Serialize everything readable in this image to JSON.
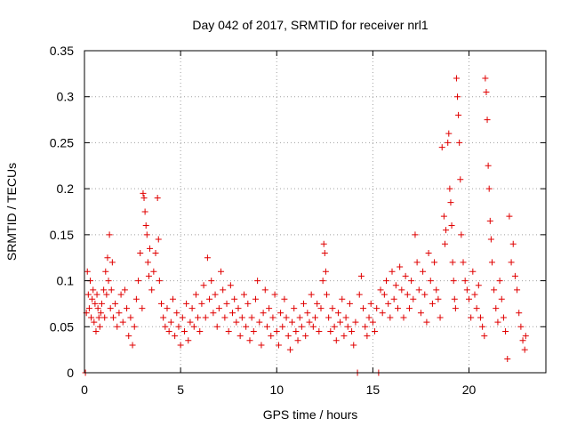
{
  "chart_data": {
    "type": "scatter",
    "title": "Day 042 of 2017, SRMTID for receiver nrl1",
    "xlabel": "GPS time / hours",
    "ylabel": "SRMTID / TECUs",
    "xlim": [
      0,
      24
    ],
    "ylim": [
      0,
      0.35
    ],
    "xticks": [
      "0",
      "5",
      "10",
      "15",
      "20"
    ],
    "yticks": [
      "0",
      "0.05",
      "0.1",
      "0.15",
      "0.2",
      "0.25",
      "0.3",
      "0.35"
    ],
    "grid": true,
    "marker": "+",
    "color": "#e00000",
    "series": [
      {
        "points": [
          [
            0.05,
            0.0
          ],
          [
            0.1,
            0.065
          ],
          [
            0.15,
            0.11
          ],
          [
            0.2,
            0.085
          ],
          [
            0.25,
            0.07
          ],
          [
            0.3,
            0.1
          ],
          [
            0.35,
            0.06
          ],
          [
            0.4,
            0.08
          ],
          [
            0.45,
            0.09
          ],
          [
            0.5,
            0.055
          ],
          [
            0.55,
            0.075
          ],
          [
            0.6,
            0.045
          ],
          [
            0.65,
            0.085
          ],
          [
            0.7,
            0.07
          ],
          [
            0.75,
            0.06
          ],
          [
            0.8,
            0.05
          ],
          [
            0.85,
            0.065
          ],
          [
            0.9,
            0.075
          ],
          [
            1.0,
            0.09
          ],
          [
            1.05,
            0.06
          ],
          [
            1.1,
            0.11
          ],
          [
            1.15,
            0.085
          ],
          [
            1.2,
            0.125
          ],
          [
            1.25,
            0.1
          ],
          [
            1.3,
            0.15
          ],
          [
            1.35,
            0.07
          ],
          [
            1.4,
            0.09
          ],
          [
            1.45,
            0.12
          ],
          [
            1.5,
            0.06
          ],
          [
            1.6,
            0.075
          ],
          [
            1.7,
            0.05
          ],
          [
            1.8,
            0.065
          ],
          [
            1.9,
            0.085
          ],
          [
            2.0,
            0.055
          ],
          [
            2.1,
            0.09
          ],
          [
            2.2,
            0.07
          ],
          [
            2.3,
            0.04
          ],
          [
            2.4,
            0.06
          ],
          [
            2.5,
            0.03
          ],
          [
            2.6,
            0.05
          ],
          [
            2.7,
            0.08
          ],
          [
            2.8,
            0.1
          ],
          [
            2.9,
            0.13
          ],
          [
            3.0,
            0.07
          ],
          [
            3.05,
            0.195
          ],
          [
            3.1,
            0.19
          ],
          [
            3.15,
            0.175
          ],
          [
            3.2,
            0.16
          ],
          [
            3.25,
            0.15
          ],
          [
            3.3,
            0.12
          ],
          [
            3.35,
            0.105
          ],
          [
            3.4,
            0.135
          ],
          [
            3.5,
            0.09
          ],
          [
            3.6,
            0.11
          ],
          [
            3.7,
            0.13
          ],
          [
            3.8,
            0.19
          ],
          [
            3.85,
            0.145
          ],
          [
            3.9,
            0.1
          ],
          [
            4.0,
            0.075
          ],
          [
            4.1,
            0.06
          ],
          [
            4.2,
            0.05
          ],
          [
            4.3,
            0.07
          ],
          [
            4.4,
            0.045
          ],
          [
            4.5,
            0.055
          ],
          [
            4.6,
            0.08
          ],
          [
            4.7,
            0.04
          ],
          [
            4.8,
            0.065
          ],
          [
            4.9,
            0.05
          ],
          [
            5.0,
            0.03
          ],
          [
            5.1,
            0.06
          ],
          [
            5.2,
            0.045
          ],
          [
            5.3,
            0.075
          ],
          [
            5.4,
            0.035
          ],
          [
            5.5,
            0.055
          ],
          [
            5.6,
            0.07
          ],
          [
            5.7,
            0.05
          ],
          [
            5.8,
            0.085
          ],
          [
            5.9,
            0.06
          ],
          [
            6.0,
            0.045
          ],
          [
            6.1,
            0.075
          ],
          [
            6.2,
            0.095
          ],
          [
            6.3,
            0.06
          ],
          [
            6.4,
            0.125
          ],
          [
            6.5,
            0.08
          ],
          [
            6.6,
            0.1
          ],
          [
            6.7,
            0.065
          ],
          [
            6.8,
            0.085
          ],
          [
            6.9,
            0.05
          ],
          [
            7.0,
            0.07
          ],
          [
            7.1,
            0.11
          ],
          [
            7.2,
            0.09
          ],
          [
            7.3,
            0.06
          ],
          [
            7.4,
            0.075
          ],
          [
            7.5,
            0.045
          ],
          [
            7.6,
            0.095
          ],
          [
            7.7,
            0.065
          ],
          [
            7.8,
            0.08
          ],
          [
            7.9,
            0.055
          ],
          [
            8.0,
            0.07
          ],
          [
            8.1,
            0.04
          ],
          [
            8.2,
            0.06
          ],
          [
            8.3,
            0.085
          ],
          [
            8.4,
            0.05
          ],
          [
            8.5,
            0.075
          ],
          [
            8.6,
            0.035
          ],
          [
            8.7,
            0.06
          ],
          [
            8.8,
            0.045
          ],
          [
            8.9,
            0.08
          ],
          [
            9.0,
            0.1
          ],
          [
            9.1,
            0.055
          ],
          [
            9.2,
            0.03
          ],
          [
            9.3,
            0.065
          ],
          [
            9.4,
            0.09
          ],
          [
            9.5,
            0.05
          ],
          [
            9.6,
            0.07
          ],
          [
            9.7,
            0.04
          ],
          [
            9.8,
            0.06
          ],
          [
            9.9,
            0.085
          ],
          [
            10.0,
            0.045
          ],
          [
            10.1,
            0.03
          ],
          [
            10.2,
            0.065
          ],
          [
            10.3,
            0.05
          ],
          [
            10.4,
            0.08
          ],
          [
            10.5,
            0.06
          ],
          [
            10.6,
            0.04
          ],
          [
            10.7,
            0.025
          ],
          [
            10.8,
            0.055
          ],
          [
            10.9,
            0.07
          ],
          [
            11.0,
            0.045
          ],
          [
            11.1,
            0.035
          ],
          [
            11.2,
            0.06
          ],
          [
            11.3,
            0.05
          ],
          [
            11.4,
            0.075
          ],
          [
            11.5,
            0.04
          ],
          [
            11.6,
            0.065
          ],
          [
            11.7,
            0.055
          ],
          [
            11.8,
            0.085
          ],
          [
            11.9,
            0.05
          ],
          [
            12.0,
            0.06
          ],
          [
            12.1,
            0.075
          ],
          [
            12.2,
            0.045
          ],
          [
            12.3,
            0.07
          ],
          [
            12.4,
            0.1
          ],
          [
            12.45,
            0.14
          ],
          [
            12.5,
            0.13
          ],
          [
            12.55,
            0.11
          ],
          [
            12.6,
            0.085
          ],
          [
            12.7,
            0.06
          ],
          [
            12.8,
            0.045
          ],
          [
            12.9,
            0.07
          ],
          [
            13.0,
            0.05
          ],
          [
            13.1,
            0.035
          ],
          [
            13.2,
            0.065
          ],
          [
            13.3,
            0.055
          ],
          [
            13.4,
            0.08
          ],
          [
            13.5,
            0.04
          ],
          [
            13.6,
            0.06
          ],
          [
            13.7,
            0.05
          ],
          [
            13.8,
            0.075
          ],
          [
            13.9,
            0.045
          ],
          [
            14.0,
            0.03
          ],
          [
            14.1,
            0.055
          ],
          [
            14.2,
            0.0
          ],
          [
            14.3,
            0.085
          ],
          [
            14.4,
            0.105
          ],
          [
            14.5,
            0.07
          ],
          [
            14.6,
            0.05
          ],
          [
            14.7,
            0.04
          ],
          [
            14.8,
            0.06
          ],
          [
            14.9,
            0.075
          ],
          [
            15.0,
            0.055
          ],
          [
            15.1,
            0.045
          ],
          [
            15.2,
            0.07
          ],
          [
            15.3,
            0.0
          ],
          [
            15.4,
            0.09
          ],
          [
            15.5,
            0.065
          ],
          [
            15.6,
            0.085
          ],
          [
            15.7,
            0.1
          ],
          [
            15.8,
            0.075
          ],
          [
            15.9,
            0.06
          ],
          [
            16.0,
            0.11
          ],
          [
            16.1,
            0.08
          ],
          [
            16.2,
            0.095
          ],
          [
            16.3,
            0.07
          ],
          [
            16.4,
            0.115
          ],
          [
            16.5,
            0.09
          ],
          [
            16.6,
            0.06
          ],
          [
            16.7,
            0.105
          ],
          [
            16.8,
            0.085
          ],
          [
            16.9,
            0.07
          ],
          [
            17.0,
            0.1
          ],
          [
            17.1,
            0.08
          ],
          [
            17.2,
            0.15
          ],
          [
            17.3,
            0.12
          ],
          [
            17.4,
            0.09
          ],
          [
            17.5,
            0.065
          ],
          [
            17.6,
            0.11
          ],
          [
            17.7,
            0.085
          ],
          [
            17.8,
            0.055
          ],
          [
            17.9,
            0.13
          ],
          [
            18.0,
            0.1
          ],
          [
            18.1,
            0.075
          ],
          [
            18.2,
            0.12
          ],
          [
            18.3,
            0.09
          ],
          [
            18.4,
            0.08
          ],
          [
            18.5,
            0.06
          ],
          [
            18.6,
            0.245
          ],
          [
            18.7,
            0.17
          ],
          [
            18.75,
            0.14
          ],
          [
            18.8,
            0.155
          ],
          [
            18.9,
            0.25
          ],
          [
            18.95,
            0.26
          ],
          [
            19.0,
            0.2
          ],
          [
            19.05,
            0.185
          ],
          [
            19.1,
            0.16
          ],
          [
            19.15,
            0.12
          ],
          [
            19.2,
            0.1
          ],
          [
            19.25,
            0.08
          ],
          [
            19.3,
            0.07
          ],
          [
            19.35,
            0.32
          ],
          [
            19.4,
            0.3
          ],
          [
            19.45,
            0.28
          ],
          [
            19.5,
            0.25
          ],
          [
            19.55,
            0.21
          ],
          [
            19.6,
            0.15
          ],
          [
            19.7,
            0.12
          ],
          [
            19.8,
            0.1
          ],
          [
            19.9,
            0.09
          ],
          [
            20.0,
            0.08
          ],
          [
            20.1,
            0.06
          ],
          [
            20.2,
            0.11
          ],
          [
            20.3,
            0.085
          ],
          [
            20.4,
            0.07
          ],
          [
            20.5,
            0.095
          ],
          [
            20.6,
            0.06
          ],
          [
            20.7,
            0.05
          ],
          [
            20.8,
            0.04
          ],
          [
            20.85,
            0.32
          ],
          [
            20.9,
            0.305
          ],
          [
            20.95,
            0.275
          ],
          [
            21.0,
            0.225
          ],
          [
            21.05,
            0.2
          ],
          [
            21.1,
            0.165
          ],
          [
            21.15,
            0.145
          ],
          [
            21.2,
            0.12
          ],
          [
            21.3,
            0.09
          ],
          [
            21.4,
            0.07
          ],
          [
            21.5,
            0.055
          ],
          [
            21.6,
            0.1
          ],
          [
            21.7,
            0.08
          ],
          [
            21.8,
            0.06
          ],
          [
            21.9,
            0.045
          ],
          [
            22.0,
            0.015
          ],
          [
            22.1,
            0.17
          ],
          [
            22.2,
            0.12
          ],
          [
            22.3,
            0.14
          ],
          [
            22.4,
            0.105
          ],
          [
            22.5,
            0.09
          ],
          [
            22.6,
            0.065
          ],
          [
            22.7,
            0.05
          ],
          [
            22.8,
            0.035
          ],
          [
            22.9,
            0.025
          ],
          [
            22.95,
            0.04
          ]
        ]
      }
    ]
  }
}
